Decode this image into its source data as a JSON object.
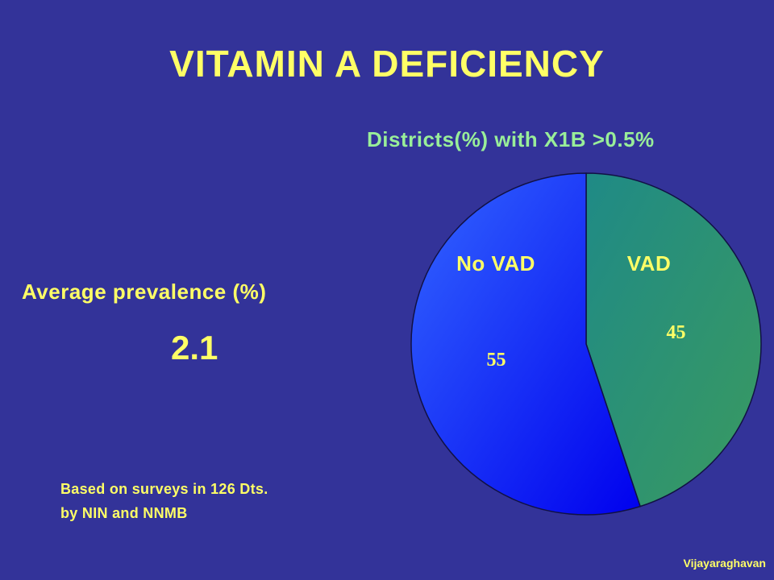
{
  "slide": {
    "title": "VITAMIN A DEFICIENCY",
    "average_label": "Average prevalence (%)",
    "average_value": "2.1",
    "source_line1": "Based on surveys in 126 Dts.",
    "source_line2": "by NIN and NNMB",
    "credit": "Vijayaraghavan"
  },
  "colors": {
    "background": "#333399",
    "title_text": "#ffff66",
    "chart_title_text": "#99ee99",
    "vad_slice": "#339977",
    "no_vad_slice": "#2244ff"
  },
  "chart_data": {
    "type": "pie",
    "title": "Districts(%) with X1B >0.5%",
    "slices": [
      {
        "label": "VAD",
        "value": 45
      },
      {
        "label": "No VAD",
        "value": 55
      }
    ]
  }
}
